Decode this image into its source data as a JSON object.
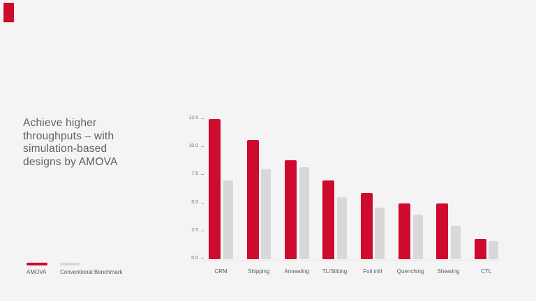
{
  "slide": {
    "background_color": "#f4f4f5",
    "brand_mark_color": "#ce0a2e",
    "headline_lines": [
      "Achieve higher",
      "throughputs – with",
      "simulation-based",
      "designs by AMOVA"
    ]
  },
  "legend": {
    "items": [
      {
        "label": "AMOVA",
        "color": "#ce0a2e"
      },
      {
        "label": "Conventional Benchmark",
        "color": "#d8d8da"
      }
    ]
  },
  "chart_data": {
    "type": "bar",
    "categories": [
      "CRM",
      "Shipping",
      "Annealing",
      "TL/Slitting",
      "Foil mill",
      "Quenching",
      "Shearing",
      "CTL"
    ],
    "series": [
      {
        "name": "AMOVA",
        "color": "#ce0a2e",
        "values": [
          12.5,
          10.6,
          8.8,
          7.0,
          5.9,
          5.0,
          5.0,
          1.8
        ]
      },
      {
        "name": "Conventional Benchmark",
        "color": "#d8d8da",
        "values": [
          7.0,
          8.0,
          8.2,
          5.5,
          4.6,
          4.0,
          3.0,
          1.6
        ]
      }
    ],
    "title": "",
    "xlabel": "",
    "ylabel": "",
    "y_axis": {
      "tick_labels": [
        "12.5",
        "10.0",
        "7.5",
        "5.0",
        "2.5",
        "0.0"
      ],
      "range": [
        0,
        12.5
      ]
    },
    "grid": false,
    "legend_position": "bottom-left"
  }
}
